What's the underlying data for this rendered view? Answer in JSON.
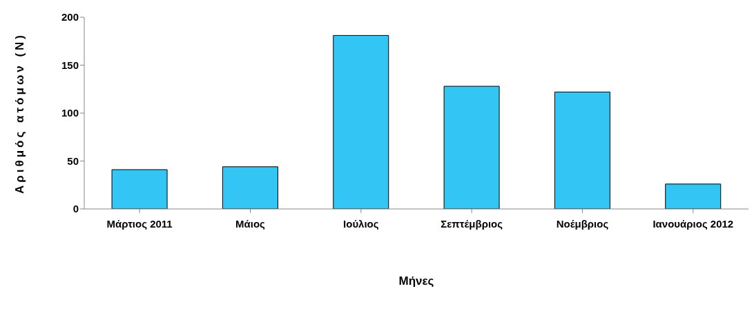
{
  "chart_data": {
    "type": "bar",
    "xlabel": "Μήνες",
    "ylabel": "Αριθμός ατόμων (N)",
    "categories": [
      "Μάρτιος 2011",
      "Μάιος",
      "Ιούλιος",
      "Σεπτέμβριος",
      "Νοέμβριος",
      "Ιανουάριος 2012"
    ],
    "values": [
      41,
      44,
      181,
      128,
      122,
      26
    ],
    "color": "#33c5f3",
    "ylim": [
      0,
      200
    ],
    "yticks": [
      0,
      50,
      100,
      150,
      200
    ],
    "grid": false,
    "legend": false
  }
}
